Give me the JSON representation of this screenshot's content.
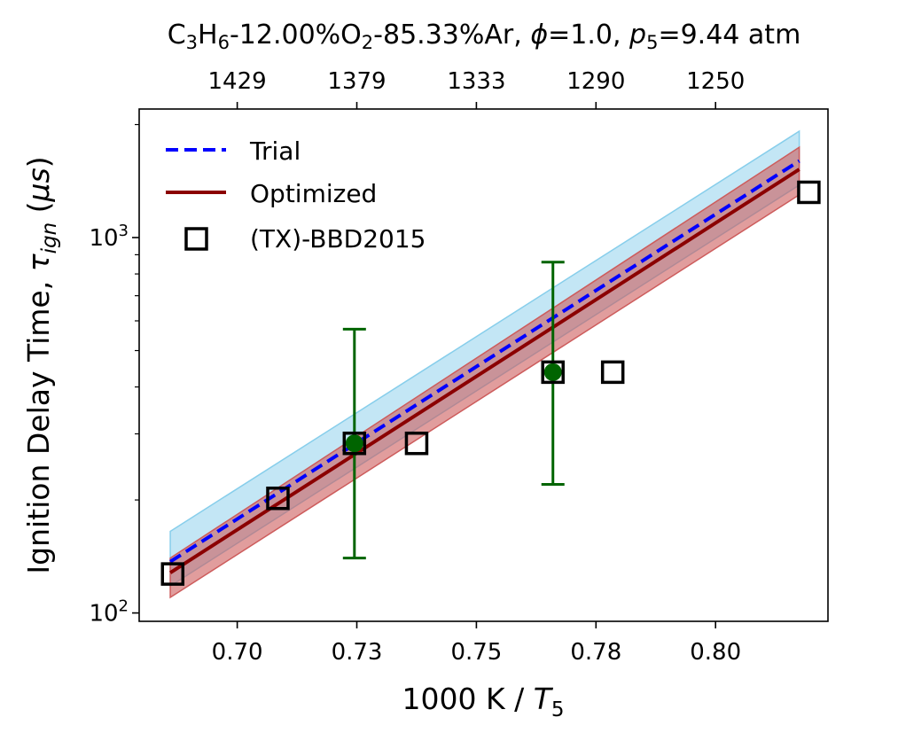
{
  "chart_data": {
    "type": "scatter",
    "title_parts": {
      "c3": "C",
      "sub3": "3",
      "h6": "H",
      "sub6": "6",
      "mid1": "-12.00%O",
      "sub2": "2",
      "mid2": "-85.33%Ar, ",
      "phi": "ϕ",
      "phival": "=1.0, ",
      "p": "p",
      "sub5": "5",
      "pval": "=9.44 atm"
    },
    "xlabel_parts": {
      "pre": "1000 K / ",
      "T": "T",
      "sub": "5"
    },
    "ylabel_parts": {
      "pre": "Ignition Delay Time, ",
      "tau": "τ",
      "sub": "ign",
      "post": " (",
      "mu": "μs",
      "close": ")"
    },
    "x_ticks": [
      {
        "value": 0.7,
        "label": "0.70"
      },
      {
        "value": 0.725,
        "label": "0.73"
      },
      {
        "value": 0.75,
        "label": "0.75"
      },
      {
        "value": 0.775,
        "label": "0.78"
      },
      {
        "value": 0.8,
        "label": "0.80"
      }
    ],
    "top_ticks": [
      {
        "value": 0.7,
        "label": "1429"
      },
      {
        "value": 0.725,
        "label": "1379"
      },
      {
        "value": 0.75,
        "label": "1333"
      },
      {
        "value": 0.775,
        "label": "1290"
      },
      {
        "value": 0.8,
        "label": "1250"
      }
    ],
    "y_ticks": [
      {
        "value": 100,
        "base": "10",
        "exp": "2"
      },
      {
        "value": 1000,
        "base": "10",
        "exp": "3"
      }
    ],
    "y_minor_ticks": [
      200,
      300,
      400,
      500,
      600,
      700,
      800,
      900,
      2000
    ],
    "xlim": [
      0.6795,
      0.8235
    ],
    "ylim": [
      95,
      2200
    ],
    "y_scale": "log",
    "grid": false,
    "legend_position": "top-left",
    "series": [
      {
        "name": "Trial",
        "kind": "line",
        "style": "dashed",
        "color": "#0000ff",
        "x": [
          0.686,
          0.8175
        ],
        "y": [
          137,
          1600
        ],
        "band": {
          "color": "#87ceeb",
          "lower": [
            118,
            1380
          ],
          "upper": [
            165,
            1920
          ]
        }
      },
      {
        "name": "Optimized",
        "kind": "line",
        "style": "solid",
        "color": "#8b0000",
        "x": [
          0.686,
          0.8175
        ],
        "y": [
          128,
          1520
        ],
        "band": {
          "color": "#cd5c5c",
          "lower": [
            110,
            1300
          ],
          "upper": [
            140,
            1740
          ]
        }
      },
      {
        "name": "(TX)-BBD2015",
        "kind": "markers",
        "marker": "square",
        "color": "#000000",
        "x": [
          0.6865,
          0.7085,
          0.7245,
          0.7375,
          0.766,
          0.7785,
          0.8195
        ],
        "y": [
          127,
          202,
          283,
          283,
          438,
          438,
          1320
        ]
      },
      {
        "name": "",
        "kind": "errorbar",
        "color": "#006400",
        "x": [
          0.7245,
          0.766
        ],
        "y": [
          283,
          438
        ],
        "y_low": [
          140,
          220
        ],
        "y_high": [
          570,
          860
        ]
      }
    ]
  }
}
